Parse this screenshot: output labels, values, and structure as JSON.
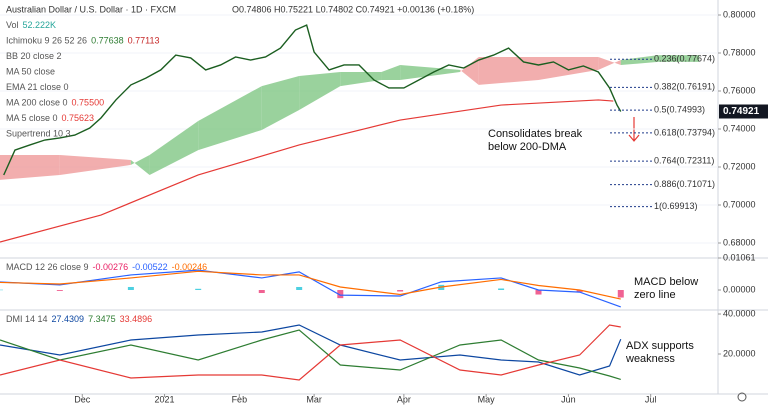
{
  "chart_data": [
    {
      "type": "line",
      "title": "Australian Dollar / U.S. Dollar · 1D · FXCM",
      "subtitle": "O0.74806 H0.75221 L0.74802 C0.74921 +0.00136 (+0.18%)",
      "legend": [
        {
          "name": "Vol",
          "values": [
            "52.222K"
          ],
          "colors": [
            "#26a69a"
          ]
        },
        {
          "name": "Ichimoku 9 26 52 26",
          "values": [
            "0.77638",
            "0.77113"
          ],
          "colors": [
            "#2e7d32",
            "#c62828"
          ]
        },
        {
          "name": "BB 20 close 2",
          "values": [],
          "colors": []
        },
        {
          "name": "MA 50 close",
          "values": [],
          "colors": []
        },
        {
          "name": "EMA 21 close 0",
          "values": [],
          "colors": []
        },
        {
          "name": "MA 200 close 0",
          "values": [
            "0.75500"
          ],
          "colors": [
            "#e53935"
          ]
        },
        {
          "name": "MA 5 close 0",
          "values": [
            "0.75623"
          ],
          "colors": [
            "#e53935"
          ]
        },
        {
          "name": "Supertrend 10 3",
          "values": [],
          "colors": []
        }
      ],
      "xlim": [
        0,
        192
      ],
      "ylim": [
        0.6721,
        0.8079
      ],
      "yticks": [
        {
          "value": 0.8,
          "label": "0.80000"
        },
        {
          "value": 0.78,
          "label": "0.78000"
        },
        {
          "value": 0.76,
          "label": "0.76000"
        },
        {
          "value": 0.74,
          "label": "0.74000"
        },
        {
          "value": 0.72,
          "label": "0.72000"
        },
        {
          "value": 0.7,
          "label": "0.70000"
        },
        {
          "value": 0.68,
          "label": "0.68000"
        }
      ],
      "grid": true,
      "last_price": 0.74921,
      "cloud": {
        "x": [
          0,
          16,
          35,
          40,
          53,
          70,
          80,
          91,
          102,
          107,
          123,
          128,
          144,
          160,
          166,
          176,
          187
        ],
        "span_a": [
          0.7132,
          0.7158,
          0.7211,
          0.7263,
          0.7442,
          0.7626,
          0.7679,
          0.77,
          0.77,
          0.7737,
          0.7711,
          0.7632,
          0.7658,
          0.7711,
          0.7763,
          0.7789,
          0.7789
        ],
        "span_b": [
          0.7263,
          0.7263,
          0.7237,
          0.7158,
          0.7289,
          0.7395,
          0.75,
          0.7626,
          0.7658,
          0.7658,
          0.77,
          0.7779,
          0.7779,
          0.7779,
          0.7737,
          0.7753,
          0.7753
        ],
        "up_color": "#81c784",
        "down_color": "#ef9a9a"
      },
      "series": [
        {
          "name": "Price",
          "color": "#1b5e20",
          "x": [
            1,
            4,
            8,
            12,
            16,
            20,
            24,
            27,
            31,
            35,
            39,
            43,
            47,
            51,
            55,
            59,
            63,
            67,
            71,
            75,
            79,
            82,
            84,
            88,
            92,
            96,
            100,
            104,
            108,
            112,
            116,
            120,
            124,
            128,
            132,
            136,
            140,
            144,
            148,
            152,
            156,
            160,
            163,
            165,
            166
          ],
          "values": [
            0.7158,
            0.7289,
            0.7316,
            0.7342,
            0.7353,
            0.7368,
            0.7405,
            0.7458,
            0.7553,
            0.7632,
            0.7668,
            0.7711,
            0.7789,
            0.7774,
            0.7711,
            0.7737,
            0.7779,
            0.7763,
            0.7779,
            0.7826,
            0.7921,
            0.7947,
            0.7805,
            0.7711,
            0.7737,
            0.7737,
            0.7658,
            0.7616,
            0.7616,
            0.7658,
            0.77,
            0.7737,
            0.7721,
            0.7763,
            0.7789,
            0.7826,
            0.7753,
            0.7737,
            0.7753,
            0.7711,
            0.7732,
            0.77,
            0.7616,
            0.7526,
            0.74921
          ]
        },
        {
          "name": "MA 200",
          "color": "#e53935",
          "x": [
            0,
            27,
            53,
            80,
            107,
            134,
            160,
            164
          ],
          "values": [
            0.6805,
            0.6947,
            0.7158,
            0.7316,
            0.7447,
            0.7526,
            0.7553,
            0.7547
          ]
        }
      ],
      "fib": [
        {
          "label": "0.236(0.77674)",
          "value": 0.77674
        },
        {
          "label": "0.382(0.76191)",
          "value": 0.76191
        },
        {
          "label": "0.5(0.74993)",
          "value": 0.74993
        },
        {
          "label": "0.618(0.73794)",
          "value": 0.73794
        },
        {
          "label": "0.764(0.72311)",
          "value": 0.72311
        },
        {
          "label": "0.886(0.71071)",
          "value": 0.71071
        },
        {
          "label": "1(0.69913)",
          "value": 0.69913
        }
      ],
      "annotations": [
        [
          "Consolidates break",
          "below 200-DMA"
        ]
      ]
    },
    {
      "type": "line",
      "legend": [
        {
          "name": "MACD 12 26 close 9",
          "values": [
            "-0.00276",
            "-0.00522",
            "-0.00246"
          ],
          "colors": [
            "#e91e63",
            "#2962ff",
            "#ff6d00"
          ]
        }
      ],
      "xlim": [
        0,
        192
      ],
      "ylim": [
        -0.00663,
        0.01061
      ],
      "yticks": [
        {
          "value": 0.01061,
          "label": "0.01061"
        },
        {
          "value": 0,
          "label": "0.00000"
        }
      ],
      "histogram": {
        "x": [
          0,
          16,
          35,
          53,
          70,
          80,
          91,
          107,
          118,
          134,
          144,
          155,
          166
        ],
        "values": [
          0.0001,
          -0.0003,
          0.001,
          0.0004,
          -0.001,
          0.001,
          -0.0027,
          -0.0005,
          0.0017,
          0.0005,
          -0.0015,
          -0.0007,
          -0.0025
        ],
        "up_color": "#4dd0e1",
        "down_color": "#f06292"
      },
      "series": [
        {
          "name": "MACD",
          "color": "#2962ff",
          "x": [
            0,
            16,
            35,
            53,
            70,
            80,
            91,
            107,
            118,
            134,
            144,
            155,
            166
          ],
          "values": [
            0.00265,
            0.0017,
            0.005,
            0.0066,
            0.004,
            0.006,
            -0.0017,
            -0.002,
            0.0027,
            0.004,
            0,
            -0.0007,
            -0.0056
          ]
        },
        {
          "name": "Signal",
          "color": "#ff6d00",
          "x": [
            0,
            16,
            35,
            53,
            70,
            80,
            91,
            107,
            118,
            134,
            144,
            155,
            166
          ],
          "values": [
            0.0025,
            0.002,
            0.004,
            0.0062,
            0.005,
            0.005,
            0.001,
            -0.0015,
            0.001,
            0.0035,
            0.0015,
            0,
            -0.003
          ]
        }
      ],
      "annotations": [
        [
          "MACD below",
          "zero line"
        ]
      ]
    },
    {
      "type": "line",
      "legend": [
        {
          "name": "DMI 14 14",
          "values": [
            "27.4309",
            "7.3475",
            "33.4896"
          ],
          "colors": [
            "#0d47a1",
            "#2e7d32",
            "#e53935"
          ]
        }
      ],
      "xlim": [
        0,
        192
      ],
      "ylim": [
        0,
        42
      ],
      "yticks": [
        {
          "value": 40,
          "label": "40.0000"
        },
        {
          "value": 20,
          "label": "20.0000"
        }
      ],
      "xticks": [
        {
          "value": 22,
          "label": "Dec"
        },
        {
          "value": 44,
          "label": "2021"
        },
        {
          "value": 64,
          "label": "Feb"
        },
        {
          "value": 84,
          "label": "Mar"
        },
        {
          "value": 108,
          "label": "Apr"
        },
        {
          "value": 130,
          "label": "May"
        },
        {
          "value": 152,
          "label": "Jun"
        },
        {
          "value": 174,
          "label": "Jul"
        }
      ],
      "series": [
        {
          "name": "ADX",
          "color": "#0d47a1",
          "x": [
            0,
            16,
            35,
            53,
            70,
            80,
            91,
            107,
            123,
            134,
            144,
            155,
            163,
            166
          ],
          "values": [
            24.5,
            19.5,
            27,
            29.5,
            31,
            34.5,
            24.5,
            17,
            19.5,
            17,
            16,
            9.5,
            14,
            27.4
          ]
        },
        {
          "name": "+DI",
          "color": "#2e7d32",
          "x": [
            0,
            16,
            35,
            53,
            70,
            80,
            91,
            107,
            123,
            134,
            144,
            155,
            163,
            166
          ],
          "values": [
            27,
            17,
            24.5,
            17,
            27,
            32,
            14.5,
            12,
            24.5,
            27,
            17,
            13,
            9,
            7.3
          ]
        },
        {
          "name": "-DI",
          "color": "#e53935",
          "x": [
            0,
            16,
            35,
            53,
            70,
            80,
            91,
            107,
            123,
            134,
            144,
            155,
            163,
            166
          ],
          "values": [
            9.5,
            17,
            8,
            9.5,
            9.5,
            7,
            24.5,
            27,
            12,
            9.5,
            14.5,
            19.5,
            34.5,
            33.5
          ]
        }
      ],
      "annotations": [
        [
          "ADX supports",
          "weakness"
        ]
      ]
    }
  ]
}
